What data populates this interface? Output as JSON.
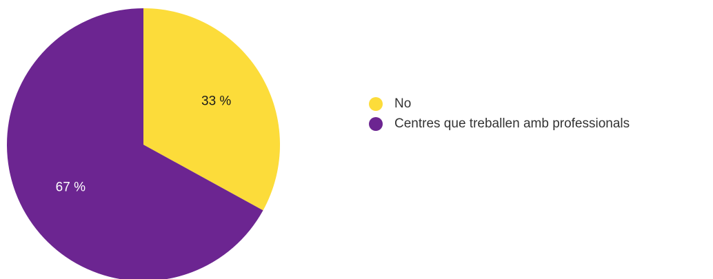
{
  "chart_data": {
    "type": "pie",
    "categories": [
      "No",
      "Centres que treballen amb professionals"
    ],
    "values": [
      33,
      67
    ],
    "value_labels": [
      "33 %",
      "67 %"
    ],
    "colors": [
      "#fcdc3a",
      "#6c2591"
    ],
    "label_colors": [
      "#1a1a1a",
      "#ffffff"
    ]
  }
}
